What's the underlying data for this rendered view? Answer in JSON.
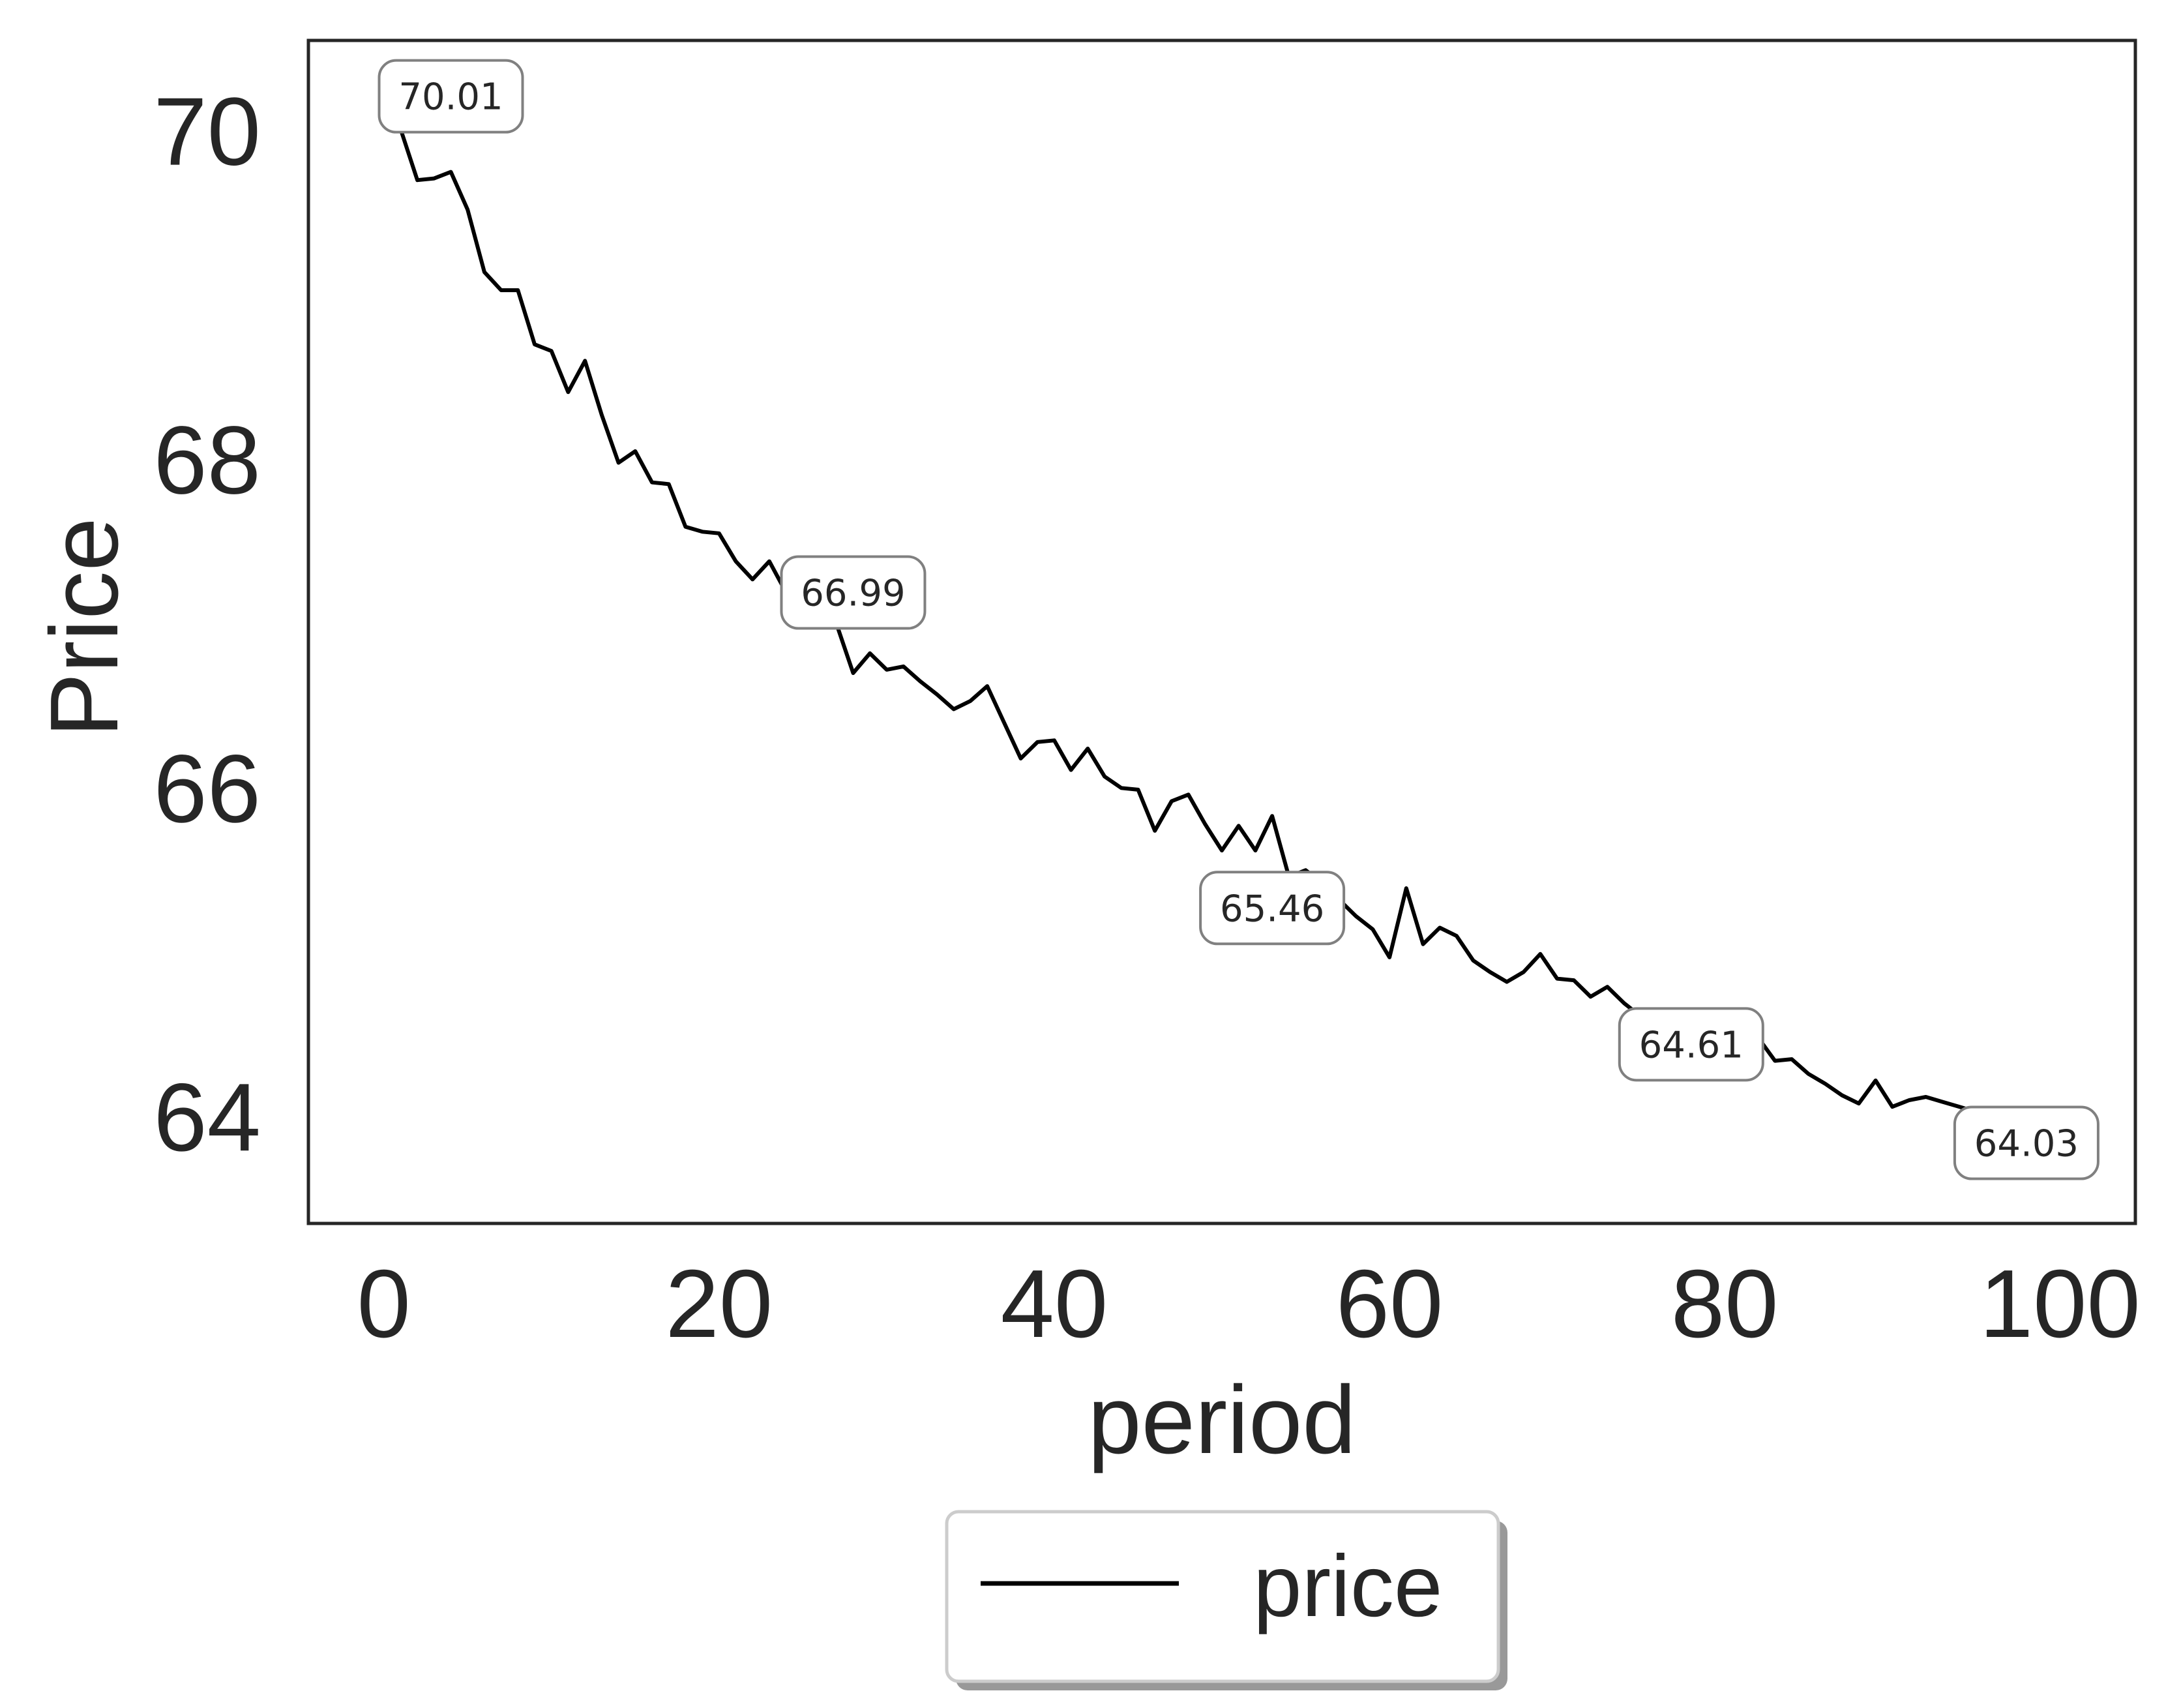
{
  "chart_data": {
    "type": "line",
    "xlabel": "period",
    "ylabel": "Price",
    "xlim": [
      -4.5,
      104.5
    ],
    "ylim": [
      63.35,
      70.55
    ],
    "xticks": [
      0,
      20,
      40,
      60,
      80,
      100
    ],
    "yticks": [
      64,
      66,
      68,
      70
    ],
    "grid": false,
    "legend_position": "bottom-center",
    "series": [
      {
        "name": "price",
        "color": "#000000",
        "x": [
          1,
          2,
          3,
          4,
          5,
          6,
          7,
          8,
          9,
          10,
          11,
          12,
          13,
          14,
          15,
          16,
          17,
          18,
          19,
          20,
          21,
          22,
          23,
          24,
          25,
          26,
          27,
          28,
          29,
          30,
          31,
          32,
          33,
          34,
          35,
          36,
          37,
          38,
          39,
          40,
          41,
          42,
          43,
          44,
          45,
          46,
          47,
          48,
          49,
          50,
          51,
          52,
          53,
          54,
          55,
          56,
          57,
          58,
          59,
          60,
          61,
          62,
          63,
          64,
          65,
          66,
          67,
          68,
          69,
          70,
          71,
          72,
          73,
          74,
          75,
          76,
          77,
          78,
          79,
          80,
          81,
          82,
          83,
          84,
          85,
          86,
          87,
          88,
          89,
          90,
          91,
          92,
          93,
          94,
          95
        ],
        "y": [
          70.01,
          69.7,
          69.71,
          69.75,
          69.52,
          69.14,
          69.03,
          69.03,
          68.7,
          68.66,
          68.41,
          68.6,
          68.27,
          67.98,
          68.05,
          67.86,
          67.85,
          67.59,
          67.56,
          67.55,
          67.38,
          67.27,
          67.38,
          67.19,
          66.99,
          67.18,
          67.0,
          66.7,
          66.82,
          66.72,
          66.74,
          66.65,
          66.57,
          66.48,
          66.53,
          66.62,
          66.4,
          66.18,
          66.28,
          66.29,
          66.11,
          66.24,
          66.07,
          66.0,
          65.99,
          65.74,
          65.92,
          65.96,
          65.78,
          65.62,
          65.77,
          65.62,
          65.83,
          65.46,
          65.5,
          65.42,
          65.32,
          65.22,
          65.14,
          64.97,
          65.39,
          65.05,
          65.15,
          65.1,
          64.95,
          64.88,
          64.82,
          64.88,
          64.99,
          64.84,
          64.83,
          64.73,
          64.79,
          64.69,
          64.61,
          64.53,
          64.49,
          64.47,
          64.4,
          64.35,
          64.32,
          64.48,
          64.34,
          64.35,
          64.26,
          64.2,
          64.13,
          64.08,
          64.22,
          64.06,
          64.1,
          64.12,
          64.09,
          64.06,
          64.03
        ]
      }
    ],
    "annotations": [
      {
        "x": 4,
        "y": 70.21,
        "text": "70.01"
      },
      {
        "x": 28,
        "y": 67.19,
        "text": "66.99"
      },
      {
        "x": 53,
        "y": 65.27,
        "text": "65.46"
      },
      {
        "x": 78,
        "y": 64.44,
        "text": "64.61"
      },
      {
        "x": 98,
        "y": 63.84,
        "text": "64.03"
      }
    ]
  }
}
